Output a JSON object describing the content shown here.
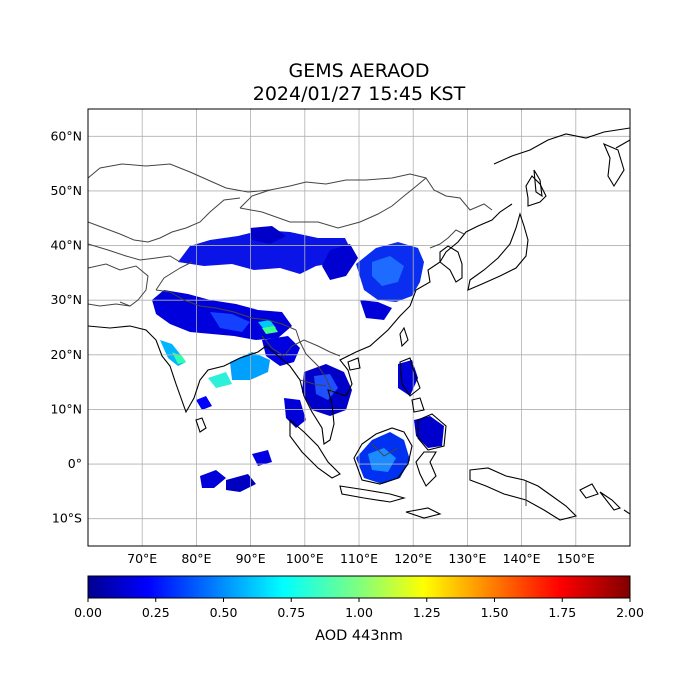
{
  "title": {
    "line1": "GEMS AERAOD",
    "line2": "2024/01/27 15:45 KST"
  },
  "map": {
    "lon_range": [
      60,
      160
    ],
    "lat_range": [
      -15,
      65
    ],
    "lat_ticks": [
      {
        "value": 60,
        "label": "60°N"
      },
      {
        "value": 50,
        "label": "50°N"
      },
      {
        "value": 40,
        "label": "40°N"
      },
      {
        "value": 30,
        "label": "30°N"
      },
      {
        "value": 20,
        "label": "20°N"
      },
      {
        "value": 10,
        "label": "10°N"
      },
      {
        "value": 0,
        "label": "0°"
      },
      {
        "value": -10,
        "label": "10°S"
      }
    ],
    "lon_ticks": [
      {
        "value": 70,
        "label": "70°E"
      },
      {
        "value": 80,
        "label": "80°E"
      },
      {
        "value": 90,
        "label": "90°E"
      },
      {
        "value": 100,
        "label": "100°E"
      },
      {
        "value": 110,
        "label": "110°E"
      },
      {
        "value": 120,
        "label": "120°E"
      },
      {
        "value": 130,
        "label": "130°E"
      },
      {
        "value": 140,
        "label": "140°E"
      },
      {
        "value": 150,
        "label": "150°E"
      }
    ],
    "grid": true
  },
  "colorbar": {
    "label": "AOD 443nm",
    "range": [
      0,
      2
    ],
    "colormap": "jet",
    "ticks": [
      "0.00",
      "0.25",
      "0.50",
      "0.75",
      "1.00",
      "1.25",
      "1.50",
      "1.75",
      "2.00"
    ]
  },
  "colors": {
    "low": "#00008f",
    "mid_low": "#0000ff",
    "mid": "#00ffff",
    "mid_high": "#ffff00",
    "high": "#ff0000",
    "max": "#800000"
  }
}
